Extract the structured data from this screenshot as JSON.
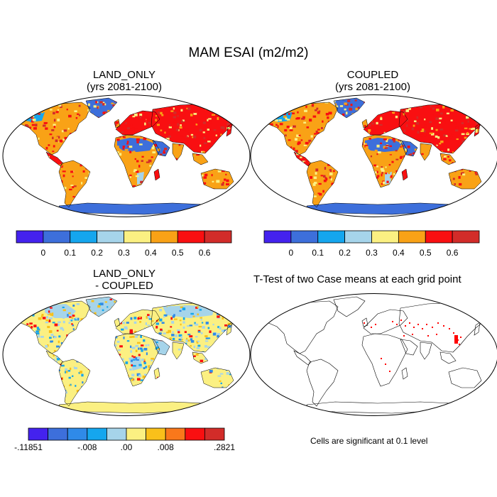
{
  "figure": {
    "title": "MAM ESAI (m2/m2)"
  },
  "panels": [
    {
      "id": "land_only",
      "title_line1": "LAND_ONLY",
      "title_line2": "(yrs 2081-2100)"
    },
    {
      "id": "coupled",
      "title_line1": "COUPLED",
      "title_line2": "(yrs 2081-2100)"
    },
    {
      "id": "difference",
      "title_line1": "LAND_ONLY",
      "title_line2": "- COUPLED"
    },
    {
      "id": "ttest",
      "title_line1": "T-Test of two Case means at each grid point",
      "note": "Cells are significant at 0.1 level"
    }
  ],
  "colorbars": {
    "absolute": {
      "colors": [
        "#4422ee",
        "#3d6fdb",
        "#15a6ee",
        "#a6d4ea",
        "#fbf082",
        "#f9a216",
        "#f90f11",
        "#d22c29"
      ],
      "labels": [
        "0",
        "0.1",
        "0.2",
        "0.3",
        "0.4",
        "0.5",
        "0.6"
      ]
    },
    "difference": {
      "colors": [
        "#4422ee",
        "#3d6fdb",
        "#2f8ae8",
        "#15a6ee",
        "#a6d4ea",
        "#fbf082",
        "#f9c01a",
        "#f9781b",
        "#f90f11",
        "#d22c29"
      ],
      "labels": [
        "-.11851",
        "-.008",
        ".00",
        ".008",
        ".2821"
      ]
    }
  },
  "map_colors": {
    "ocean": "#ffffff",
    "antarctica_absolute": "#3d6fdb",
    "antarctica_difference": "#fbf082",
    "significant": "#ff0000"
  }
}
